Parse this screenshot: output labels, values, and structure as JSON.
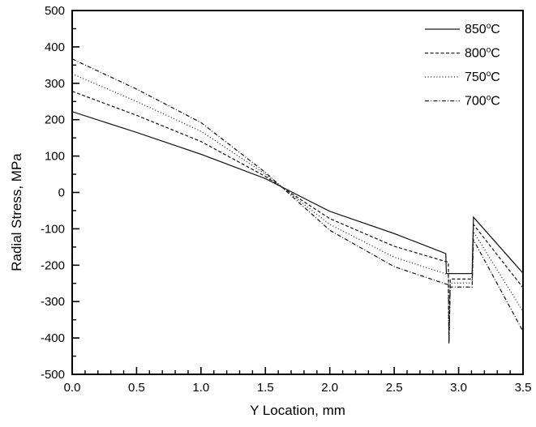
{
  "figure": {
    "background": "#ffffff",
    "line_color": "#1a1a1a",
    "frame_color": "#000000"
  },
  "chart_data": {
    "type": "line",
    "title": "",
    "xlabel": "Y Location, mm",
    "ylabel": "Radial Stress, MPa",
    "xlim": [
      0,
      3.5
    ],
    "ylim": [
      -500,
      500
    ],
    "grid": false,
    "x_tick_labels": [
      "0.0",
      "0.5",
      "1.0",
      "1.5",
      "2.0",
      "2.5",
      "3.0",
      "3.5"
    ],
    "y_tick_labels": [
      "500",
      "400",
      "300",
      "200",
      "100",
      "0",
      "-100",
      "-200",
      "-300",
      "-400",
      "-500"
    ],
    "x_minor_step": 0.1,
    "y_minor_step": 50,
    "legend_position": "top-right-inside",
    "legend": {
      "degree_symbol": "o",
      "unit": "C",
      "items": [
        {
          "value": "850",
          "style": "solid"
        },
        {
          "value": "800",
          "style": "dashed"
        },
        {
          "value": "750",
          "style": "dotted"
        },
        {
          "value": "700",
          "style": "dashdot"
        }
      ]
    },
    "series": [
      {
        "name": "850C",
        "label": "850",
        "style": "solid",
        "points": [
          [
            0,
            222
          ],
          [
            0.5,
            165
          ],
          [
            1.0,
            105
          ],
          [
            1.5,
            38
          ],
          [
            2.0,
            -52
          ],
          [
            2.5,
            -113
          ],
          [
            2.9,
            -168
          ],
          [
            2.905,
            -223
          ],
          [
            3.105,
            -223
          ],
          [
            3.115,
            -68
          ],
          [
            3.5,
            -222
          ]
        ]
      },
      {
        "name": "800C",
        "label": "800",
        "style": "dashed",
        "points": [
          [
            0,
            278
          ],
          [
            0.5,
            212
          ],
          [
            1.0,
            140
          ],
          [
            1.5,
            44
          ],
          [
            2.0,
            -72
          ],
          [
            2.5,
            -148
          ],
          [
            2.92,
            -192
          ],
          [
            2.925,
            -410
          ],
          [
            2.935,
            -238
          ],
          [
            3.105,
            -238
          ],
          [
            3.115,
            -88
          ],
          [
            3.5,
            -262
          ]
        ]
      },
      {
        "name": "750C",
        "label": "750",
        "style": "dotted",
        "points": [
          [
            0,
            326
          ],
          [
            0.5,
            250
          ],
          [
            1.0,
            168
          ],
          [
            1.5,
            50
          ],
          [
            2.0,
            -88
          ],
          [
            2.5,
            -178
          ],
          [
            2.92,
            -226
          ],
          [
            2.925,
            -412
          ],
          [
            2.935,
            -249
          ],
          [
            3.105,
            -249
          ],
          [
            3.115,
            -108
          ],
          [
            3.5,
            -327
          ]
        ]
      },
      {
        "name": "700C",
        "label": "700",
        "style": "dashdot",
        "points": [
          [
            0,
            367
          ],
          [
            0.5,
            284
          ],
          [
            1.0,
            192
          ],
          [
            1.5,
            55
          ],
          [
            2.0,
            -104
          ],
          [
            2.5,
            -204
          ],
          [
            2.92,
            -254
          ],
          [
            2.925,
            -415
          ],
          [
            2.935,
            -260
          ],
          [
            3.105,
            -260
          ],
          [
            3.115,
            -130
          ],
          [
            3.5,
            -382
          ]
        ]
      }
    ]
  }
}
